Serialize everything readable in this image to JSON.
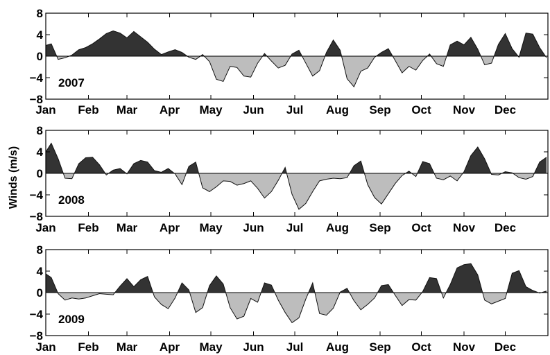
{
  "chart_data": {
    "type": "area",
    "ylabel": "Winds (m/s)",
    "yticks": [
      8,
      4,
      0,
      -4,
      -8
    ],
    "ylim": [
      -8,
      8
    ],
    "xticks": [
      "Jan",
      "Feb",
      "Mar",
      "Apr",
      "May",
      "Jun",
      "Jul",
      "Aug",
      "Sep",
      "Oct",
      "Nov",
      "Dec"
    ],
    "xlim_days": [
      1,
      366
    ],
    "positive_color": "#333333",
    "negative_color": "#bdbdbd",
    "panels": [
      {
        "year": "2007",
        "day": [
          1,
          5,
          10,
          15,
          20,
          25,
          30,
          35,
          40,
          45,
          50,
          55,
          60,
          65,
          70,
          75,
          80,
          85,
          90,
          95,
          100,
          105,
          110,
          115,
          120,
          125,
          130,
          135,
          140,
          145,
          150,
          155,
          160,
          165,
          170,
          175,
          180,
          185,
          190,
          195,
          200,
          205,
          210,
          215,
          220,
          225,
          230,
          235,
          240,
          245,
          250,
          255,
          260,
          265,
          270,
          275,
          280,
          285,
          290,
          295,
          300,
          305,
          310,
          315,
          320,
          325,
          330,
          335,
          340,
          345,
          350,
          355,
          360,
          365
        ],
        "wind": [
          2,
          2.3,
          -0.6,
          -0.3,
          0.2,
          1.2,
          1.6,
          2.3,
          3.2,
          4.2,
          4.7,
          4.3,
          3.4,
          4.6,
          3.6,
          2.6,
          1.3,
          0.3,
          0.8,
          1.2,
          0.7,
          -0.2,
          -0.6,
          0.3,
          -1,
          -4.3,
          -4.7,
          -1.9,
          -2.1,
          -3.7,
          -3.9,
          -1.3,
          0.5,
          -0.9,
          -2.2,
          -1.7,
          0.4,
          1.1,
          -1.3,
          -3.7,
          -2.7,
          0.7,
          3,
          1.1,
          -4.2,
          -5.7,
          -2.8,
          -2.2,
          -0.2,
          0.7,
          1.4,
          -0.8,
          -3.1,
          -1.9,
          -2.6,
          -0.8,
          0.4,
          -1.4,
          -1.9,
          2.1,
          2.8,
          2.1,
          3.5,
          1.3,
          -1.6,
          -1.3,
          2.2,
          4.2,
          1.4,
          -0.2,
          4.3,
          4.1,
          1.6,
          -0.3
        ]
      },
      {
        "year": "2008",
        "day": [
          1,
          5,
          10,
          15,
          20,
          25,
          30,
          35,
          40,
          45,
          50,
          55,
          60,
          65,
          70,
          75,
          80,
          85,
          90,
          95,
          100,
          105,
          110,
          115,
          120,
          125,
          130,
          135,
          140,
          145,
          150,
          155,
          160,
          165,
          170,
          175,
          180,
          185,
          190,
          195,
          200,
          205,
          210,
          215,
          220,
          225,
          230,
          235,
          240,
          245,
          250,
          255,
          260,
          265,
          270,
          275,
          280,
          285,
          290,
          295,
          300,
          305,
          310,
          315,
          320,
          325,
          330,
          335,
          340,
          345,
          350,
          355,
          360,
          365
        ],
        "wind": [
          4,
          5.6,
          2.7,
          -0.9,
          -1,
          1.8,
          2.9,
          3,
          1.6,
          -0.3,
          0.6,
          0.9,
          -0.1,
          1.8,
          2.4,
          2.1,
          0.5,
          0.2,
          0.9,
          -0.1,
          -2.1,
          1.3,
          2.1,
          -2.7,
          -3.4,
          -2.5,
          -1.4,
          -1.5,
          -2.2,
          -1.9,
          -1.4,
          -2.8,
          -4.6,
          -3.4,
          -1.3,
          1.1,
          -3.9,
          -6.7,
          -5.6,
          -3.4,
          -1.4,
          -1.1,
          -0.9,
          -1,
          -0.8,
          1.4,
          2.3,
          -2.1,
          -4.5,
          -5.7,
          -3.8,
          -1.9,
          -0.4,
          0.4,
          -0.6,
          2.2,
          1.8,
          -0.9,
          -1.2,
          -0.5,
          -1.4,
          0.3,
          3.3,
          4.9,
          2.7,
          -0.2,
          -0.3,
          0.3,
          0.1,
          -0.8,
          -1.1,
          -0.6,
          2.1,
          3
        ]
      },
      {
        "year": "2009",
        "day": [
          1,
          5,
          10,
          15,
          20,
          25,
          30,
          35,
          40,
          45,
          50,
          55,
          60,
          65,
          70,
          75,
          80,
          85,
          90,
          95,
          100,
          105,
          110,
          115,
          120,
          125,
          130,
          135,
          140,
          145,
          150,
          155,
          160,
          165,
          170,
          175,
          180,
          185,
          190,
          195,
          200,
          205,
          210,
          215,
          220,
          225,
          230,
          235,
          240,
          245,
          250,
          255,
          260,
          265,
          270,
          275,
          280,
          285,
          290,
          295,
          300,
          305,
          310,
          315,
          320,
          325,
          330,
          335,
          340,
          345,
          350,
          355,
          360,
          365
        ],
        "wind": [
          3.5,
          2.8,
          -0.2,
          -1.4,
          -1,
          -1.2,
          -1,
          -0.6,
          -0.2,
          -0.3,
          -0.4,
          1.2,
          2.6,
          1.1,
          2.4,
          3,
          -0.8,
          -2.2,
          -3,
          -1,
          1.8,
          0.5,
          -3.7,
          -2.8,
          1.3,
          3.1,
          1.6,
          -2.8,
          -4.9,
          -4.4,
          -1.1,
          -1.8,
          1.8,
          1.4,
          -1.4,
          -3.7,
          -5.6,
          -4.7,
          -1.2,
          1.8,
          -3.9,
          -4.2,
          -2.9,
          0.1,
          0.8,
          -1.5,
          -3.2,
          -2.2,
          -1,
          1.3,
          1.5,
          -0.5,
          -2.4,
          -1.3,
          -1.4,
          0.2,
          2.8,
          2.6,
          -1,
          1.5,
          4.6,
          5.2,
          5.4,
          3.3,
          -1.4,
          -2.1,
          -1.6,
          -1.1,
          3.6,
          4.1,
          1.1,
          0.4,
          -0.1,
          0.3
        ]
      }
    ]
  }
}
